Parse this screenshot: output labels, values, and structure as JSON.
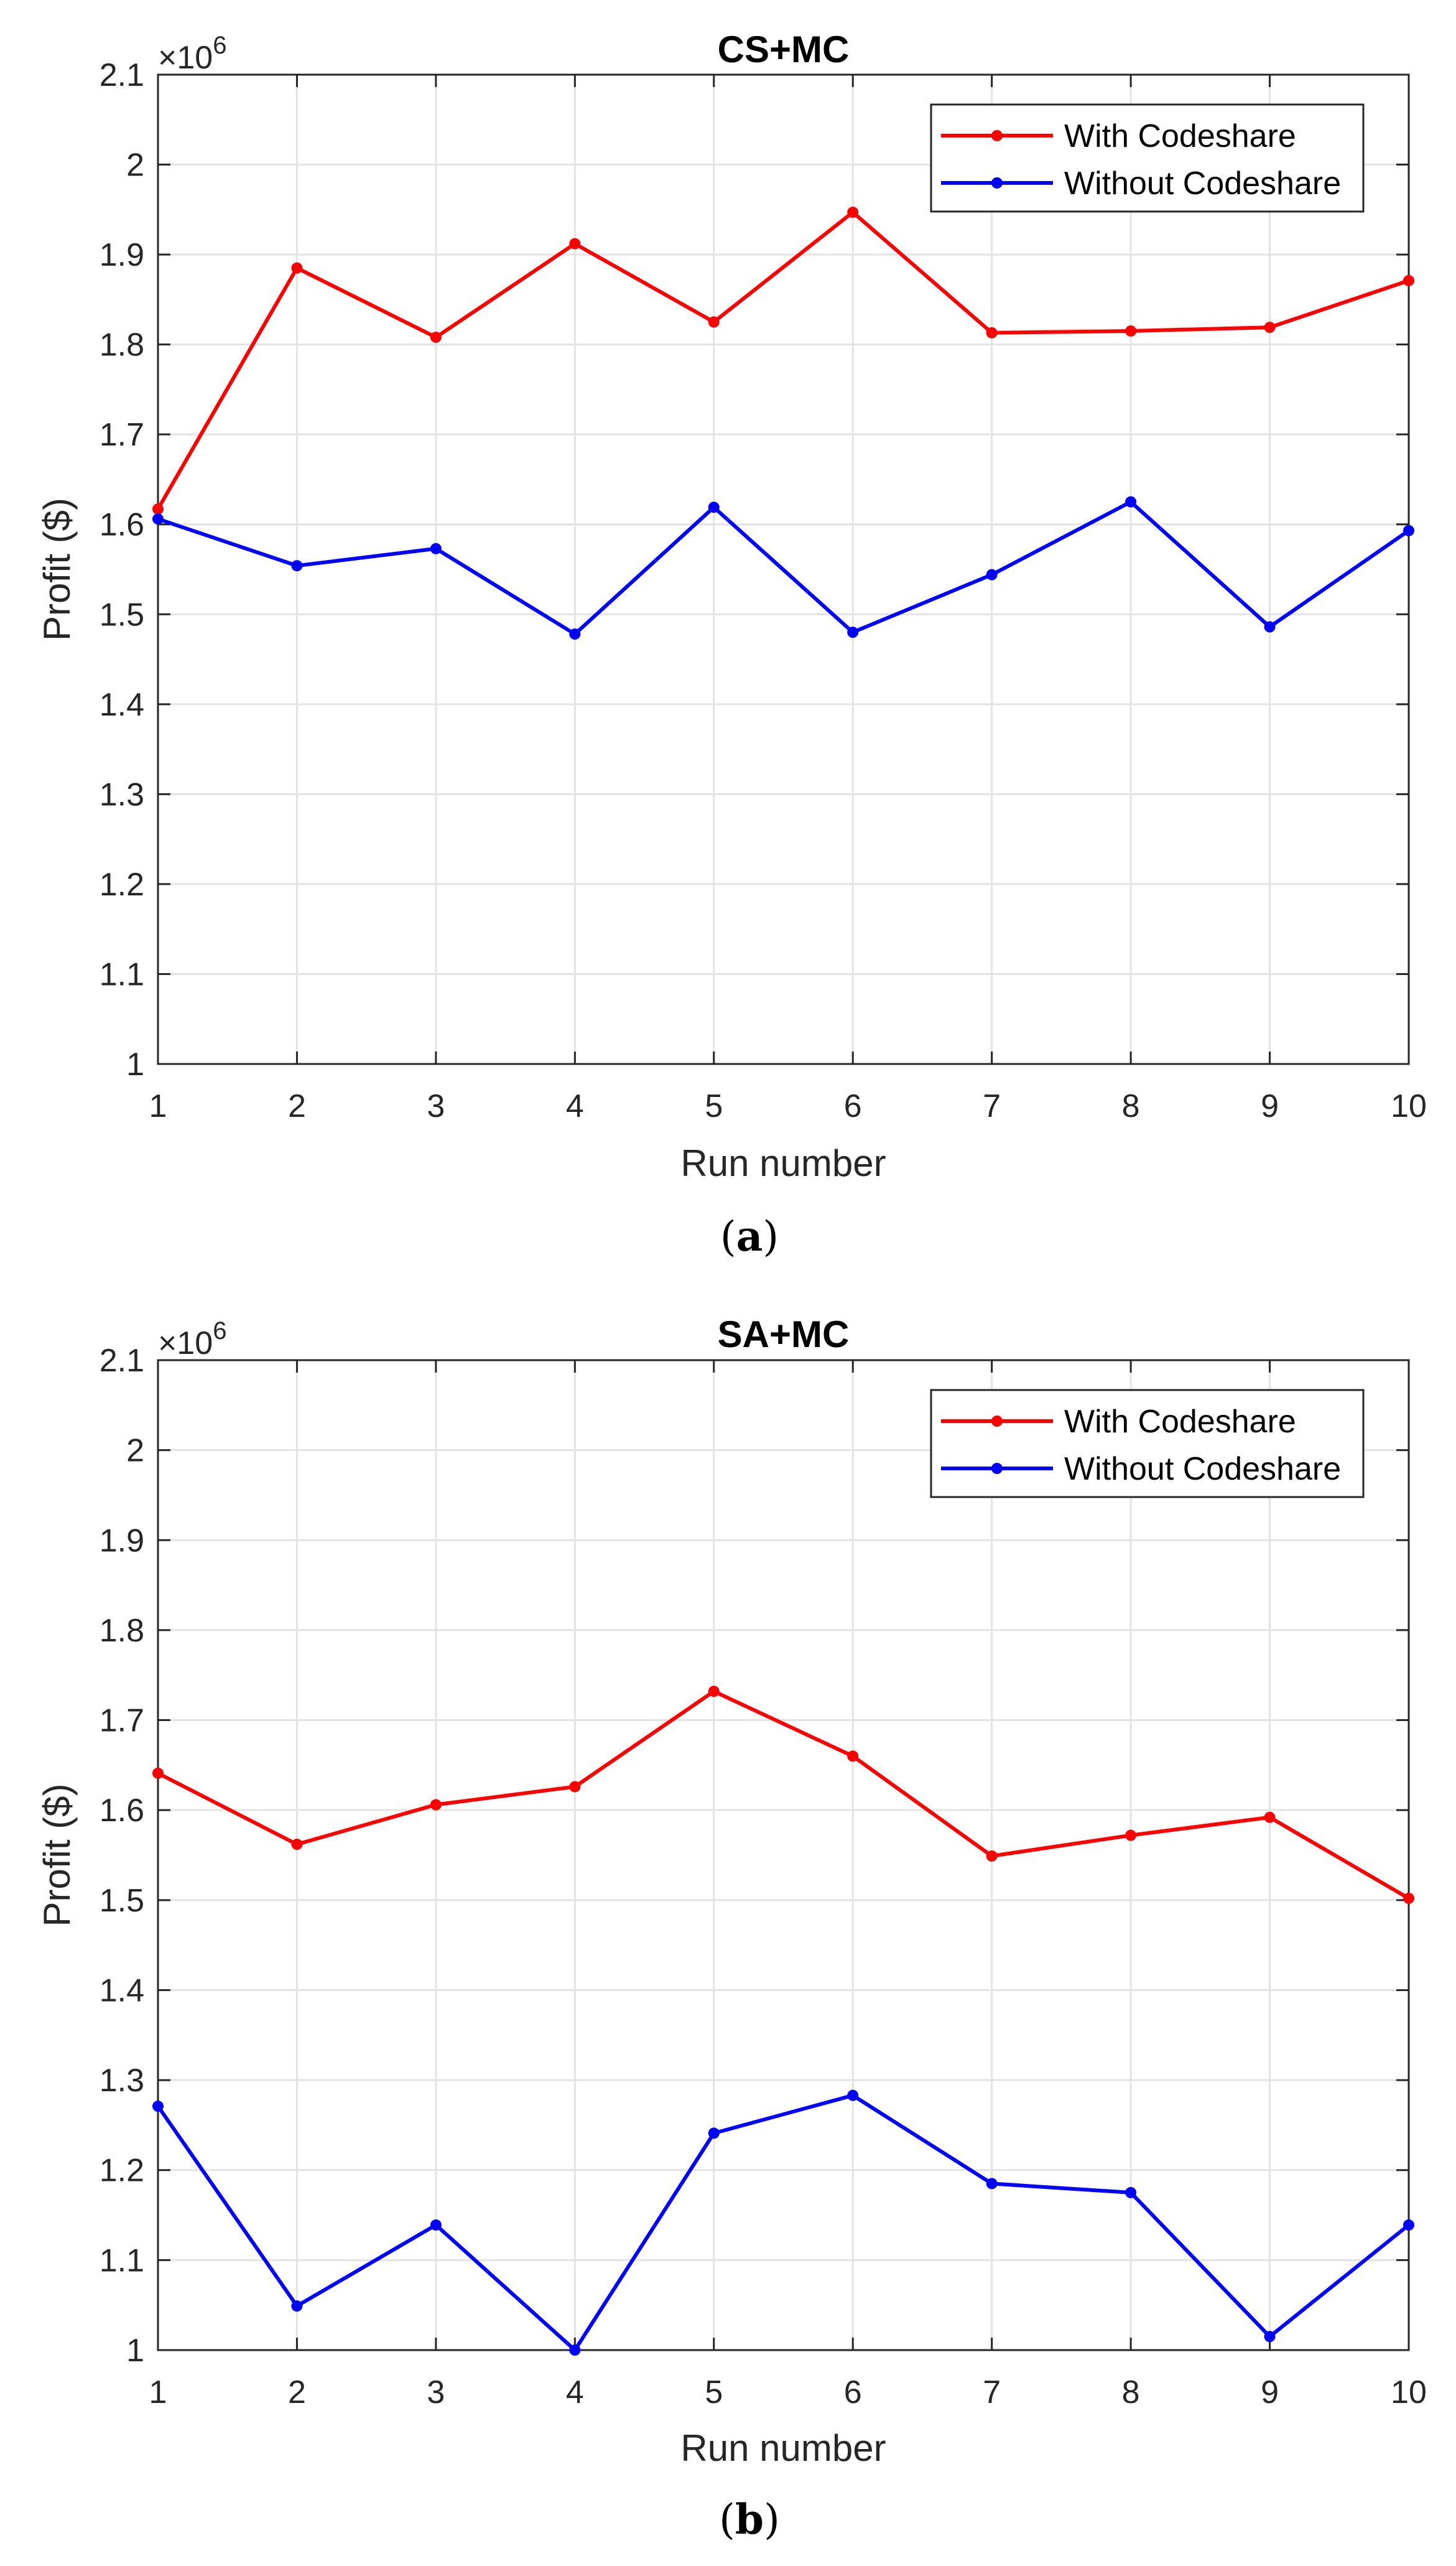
{
  "chart_data": [
    {
      "type": "line",
      "title": "CS+MC",
      "xlabel": "Run number",
      "ylabel": "Profit ($)",
      "y_multiplier_base": "10",
      "y_multiplier_exponent": "6",
      "xlim": [
        1,
        10
      ],
      "ylim": [
        1,
        2.1
      ],
      "x_ticks": [
        1,
        2,
        3,
        4,
        5,
        6,
        7,
        8,
        9,
        10
      ],
      "y_ticks": [
        1,
        1.1,
        1.2,
        1.3,
        1.4,
        1.5,
        1.6,
        1.7,
        1.8,
        1.9,
        2,
        2.1
      ],
      "x_tick_labels": [
        "1",
        "2",
        "3",
        "4",
        "5",
        "6",
        "7",
        "8",
        "9",
        "10"
      ],
      "y_tick_labels": [
        "1",
        "1.1",
        "1.2",
        "1.3",
        "1.4",
        "1.5",
        "1.6",
        "1.7",
        "1.8",
        "1.9",
        "2",
        "2.1"
      ],
      "grid": true,
      "legend_position": "top-right",
      "x": [
        1,
        2,
        3,
        4,
        5,
        6,
        7,
        8,
        9,
        10
      ],
      "series": [
        {
          "name": "With Codeshare",
          "color": "#ff0000",
          "values": [
            1.617,
            1.885,
            1.808,
            1.912,
            1.825,
            1.947,
            1.813,
            1.815,
            1.819,
            1.871
          ]
        },
        {
          "name": "Without Codeshare",
          "color": "#0000ff",
          "values": [
            1.606,
            1.554,
            1.573,
            1.478,
            1.619,
            1.48,
            1.544,
            1.625,
            1.486,
            1.593
          ]
        }
      ],
      "caption_open": "(",
      "caption_letter": "a",
      "caption_close": ")"
    },
    {
      "type": "line",
      "title": "SA+MC",
      "xlabel": "Run number",
      "ylabel": "Profit ($)",
      "y_multiplier_base": "10",
      "y_multiplier_exponent": "6",
      "xlim": [
        1,
        10
      ],
      "ylim": [
        1,
        2.1
      ],
      "x_ticks": [
        1,
        2,
        3,
        4,
        5,
        6,
        7,
        8,
        9,
        10
      ],
      "y_ticks": [
        1,
        1.1,
        1.2,
        1.3,
        1.4,
        1.5,
        1.6,
        1.7,
        1.8,
        1.9,
        2,
        2.1
      ],
      "x_tick_labels": [
        "1",
        "2",
        "3",
        "4",
        "5",
        "6",
        "7",
        "8",
        "9",
        "10"
      ],
      "y_tick_labels": [
        "1",
        "1.1",
        "1.2",
        "1.3",
        "1.4",
        "1.5",
        "1.6",
        "1.7",
        "1.8",
        "1.9",
        "2",
        "2.1"
      ],
      "grid": true,
      "legend_position": "top-right",
      "x": [
        1,
        2,
        3,
        4,
        5,
        6,
        7,
        8,
        9,
        10
      ],
      "series": [
        {
          "name": "With Codeshare",
          "color": "#ff0000",
          "values": [
            1.641,
            1.562,
            1.606,
            1.626,
            1.732,
            1.66,
            1.549,
            1.572,
            1.592,
            1.502
          ]
        },
        {
          "name": "Without Codeshare",
          "color": "#0000ff",
          "values": [
            1.271,
            1.049,
            1.139,
            1.0,
            1.241,
            1.283,
            1.185,
            1.175,
            1.015,
            1.139
          ]
        }
      ],
      "caption_open": "(",
      "caption_letter": "b",
      "caption_close": ")"
    }
  ]
}
